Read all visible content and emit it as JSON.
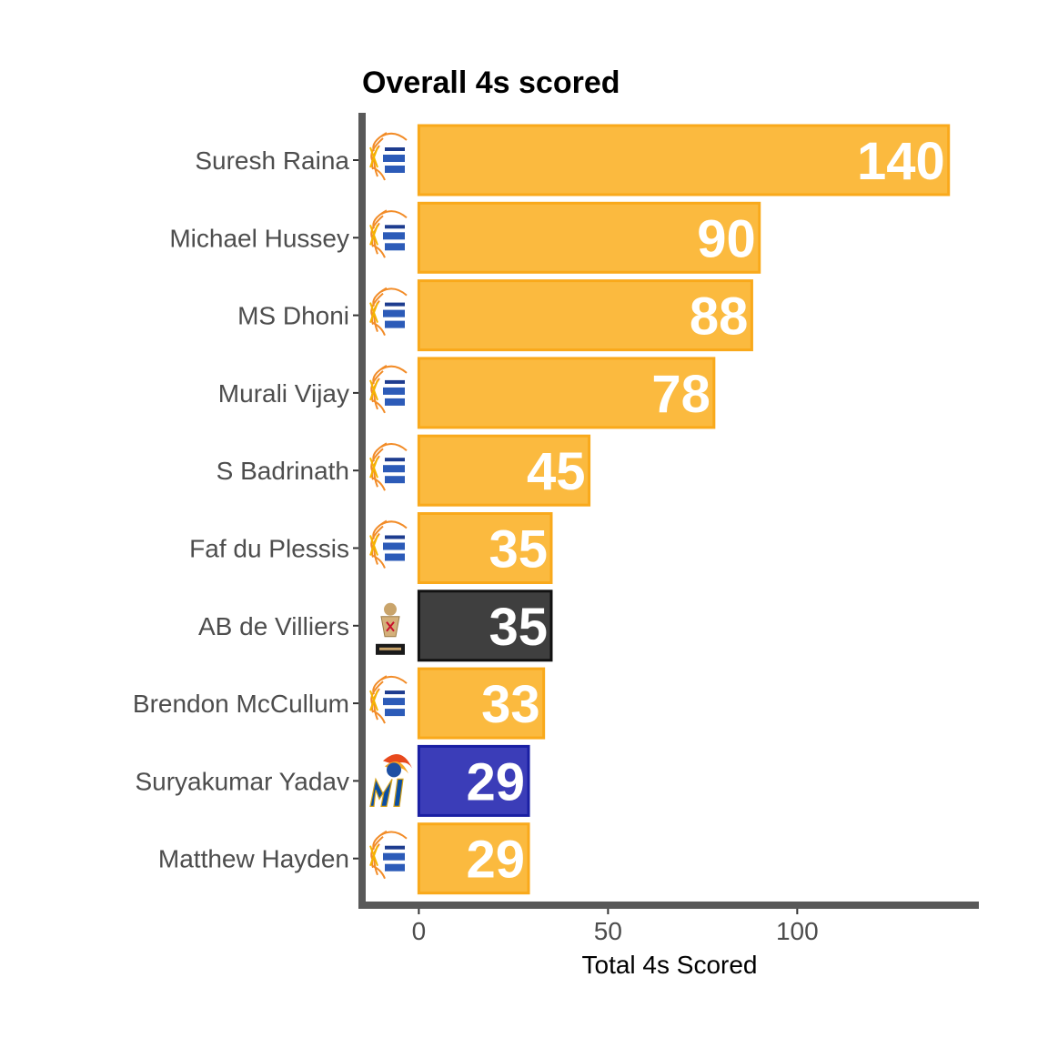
{
  "chart_data": {
    "type": "bar",
    "orientation": "horizontal",
    "title": "Overall 4s scored",
    "xlabel": "Total 4s Scored",
    "ylabel": "",
    "xlim": [
      -15,
      148
    ],
    "xticks": [
      0,
      50,
      100
    ],
    "grid": false,
    "categories": [
      "Suresh Raina",
      "Michael Hussey",
      "MS Dhoni",
      "Murali Vijay",
      "S Badrinath",
      "Faf du Plessis",
      "AB de Villiers",
      "Brendon McCullum",
      "Suryakumar Yadav",
      "Matthew Hayden"
    ],
    "values": [
      140,
      90,
      88,
      78,
      45,
      35,
      35,
      33,
      29,
      29
    ],
    "teams": [
      "CSK",
      "CSK",
      "CSK",
      "CSK",
      "CSK",
      "CSK",
      "RCB",
      "CSK",
      "MI",
      "CSK"
    ],
    "team_logos": {
      "CSK": "chennai-super-kings-logo-icon",
      "RCB": "royal-challengers-logo-icon",
      "MI": "mumbai-indians-logo-icon"
    },
    "team_colors": {
      "CSK": {
        "fill": "#FBBA3F",
        "stroke": "#F9A91B"
      },
      "RCB": {
        "fill": "#3F3F3F",
        "stroke": "#111111"
      },
      "MI": {
        "fill": "#3B3DB8",
        "stroke": "#1A1FA3"
      }
    }
  }
}
